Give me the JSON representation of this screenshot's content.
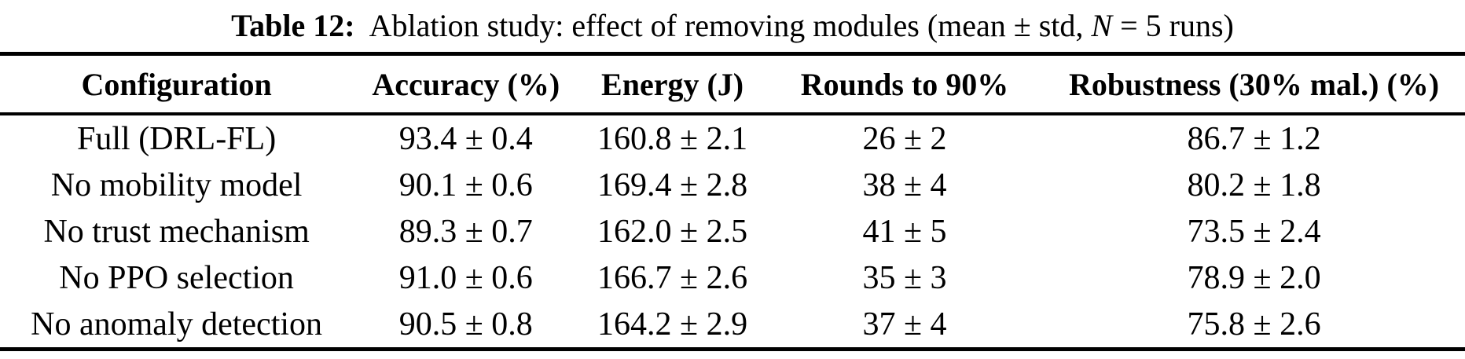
{
  "page": {
    "background": "#ffffff",
    "text_color": "#000000",
    "rule_color": "#000000"
  },
  "caption": {
    "label": "Table 12:",
    "body_before_n": "Ablation study: effect of removing modules (mean ± std, ",
    "n_symbol": "N",
    "body_after_n": " = 5 runs)"
  },
  "table": {
    "columns": [
      "Configuration",
      "Accuracy (%)",
      "Energy (J)",
      "Rounds to 90%",
      "Robustness (30% mal.) (%)"
    ],
    "rows": [
      [
        "Full (DRL-FL)",
        "93.4 ± 0.4",
        "160.8 ± 2.1",
        "26 ± 2",
        "86.7 ± 1.2"
      ],
      [
        "No mobility model",
        "90.1 ± 0.6",
        "169.4 ± 2.8",
        "38 ± 4",
        "80.2 ± 1.8"
      ],
      [
        "No trust mechanism",
        "89.3 ± 0.7",
        "162.0 ± 2.5",
        "41 ± 5",
        "73.5 ± 2.4"
      ],
      [
        "No PPO selection",
        "91.0 ± 0.6",
        "166.7 ± 2.6",
        "35 ± 3",
        "78.9 ± 2.0"
      ],
      [
        "No anomaly detection",
        "90.5 ± 0.8",
        "164.2 ± 2.9",
        "37 ± 4",
        "75.8 ± 2.6"
      ]
    ]
  },
  "chart_data": {
    "type": "table",
    "title": "Table 12: Ablation study: effect of removing modules (mean ± std, N = 5 runs)",
    "columns": [
      "Configuration",
      "Accuracy (%)",
      "Energy (J)",
      "Rounds to 90%",
      "Robustness (30% mal.) (%)"
    ],
    "rows": [
      [
        "Full (DRL-FL)",
        "93.4 ± 0.4",
        "160.8 ± 2.1",
        "26 ± 2",
        "86.7 ± 1.2"
      ],
      [
        "No mobility model",
        "90.1 ± 0.6",
        "169.4 ± 2.8",
        "38 ± 4",
        "80.2 ± 1.8"
      ],
      [
        "No trust mechanism",
        "89.3 ± 0.7",
        "162.0 ± 2.5",
        "41 ± 5",
        "73.5 ± 2.4"
      ],
      [
        "No PPO selection",
        "91.0 ± 0.6",
        "166.7 ± 2.6",
        "35 ± 3",
        "78.9 ± 2.0"
      ],
      [
        "No anomaly detection",
        "90.5 ± 0.8",
        "164.2 ± 2.9",
        "37 ± 4",
        "75.8 ± 2.6"
      ]
    ]
  }
}
